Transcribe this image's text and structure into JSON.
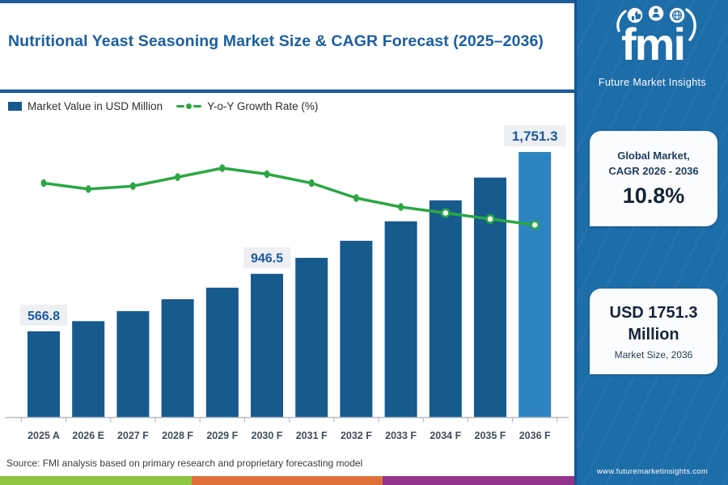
{
  "header": {
    "title": "Nutritional Yeast Seasoning Market Size & CAGR Forecast (2025–2036)"
  },
  "legend": {
    "bar_label": "Market Value in USD Million",
    "line_label": "Y-o-Y Growth Rate (%)"
  },
  "chart_data": {
    "type": "bar",
    "combo_note": "column series with overlaid line series, no visible value axes",
    "title": "Nutritional Yeast Seasoning Market Size & CAGR Forecast (2025–2036)",
    "categories": [
      "2025 A",
      "2026 E",
      "2027 F",
      "2028 F",
      "2029 F",
      "2030 F",
      "2031 F",
      "2032 F",
      "2033 F",
      "2034 F",
      "2035 F",
      "2036 F"
    ],
    "series": [
      {
        "name": "Market Value in USD Million",
        "type": "bar",
        "values": [
          566.8,
          633.9,
          700.2,
          778.8,
          855.1,
          946.5,
          1052.0,
          1164.8,
          1293.4,
          1431.9,
          1582.3,
          1751.3
        ],
        "data_labels": [
          "566.8",
          null,
          null,
          null,
          null,
          "946.5",
          null,
          null,
          null,
          null,
          null,
          "1,751.3"
        ],
        "note": "only 2025, 2030 and 2036 carry visible data labels; other values estimated from bar heights"
      },
      {
        "name": "Y-o-Y Growth Rate (%)",
        "type": "line",
        "values": [
          12.0,
          11.8,
          11.9,
          12.2,
          12.5,
          12.3,
          12.0,
          11.5,
          11.2,
          11.0,
          10.8,
          10.6
        ],
        "note": "growth-rate axis not shown; values estimated from line shape",
        "open_marker_from_index": 9
      }
    ],
    "ylim": [
      0,
      1900
    ],
    "grid": false,
    "legend_position": "top-left",
    "highlight_last_bar": true
  },
  "source": {
    "text": "Source: FMI analysis based on primary research and proprietary forecasting model"
  },
  "sidebar": {
    "logo": {
      "text": "fmi",
      "subtitle": "Future Market Insights",
      "icons": [
        "thumbs-up-icon",
        "person-icon",
        "globe-icon"
      ]
    },
    "cagr_card": {
      "line1": "Global Market,",
      "line2": "CAGR 2026 - 2036",
      "value": "10.8%"
    },
    "size_card": {
      "line1": "USD 1751.3",
      "line2": "Million",
      "caption": "Market Size, 2036"
    },
    "website": "www.futuremarketinsights.com"
  },
  "colors": {
    "bar": "#175a8e",
    "bar_highlight": "#2e84c0",
    "line": "#2aa743",
    "label_box": "#edeff2",
    "label_text": "#1b5a9e",
    "axis": "#b6bcc2",
    "xlabel": "#404f5c",
    "title": "#1c5fa0",
    "divider": "#1b5b97",
    "sidebar_bg": "#1d6da9",
    "sidebar_border": "#14578c",
    "strip_green": "#8dc63f",
    "strip_orange": "#e0703a",
    "strip_purple": "#93348c",
    "strip_blue": "#2478b3"
  }
}
